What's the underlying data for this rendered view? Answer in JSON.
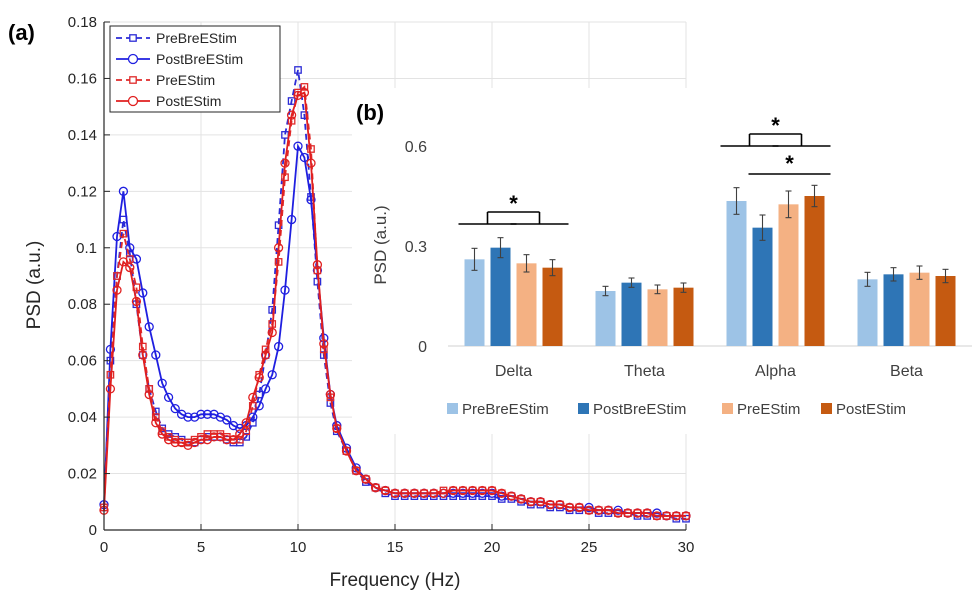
{
  "colors": {
    "pre_bre": "#2b2bd6",
    "post_bre": "#1f1fe0",
    "pre_e": "#e02a2a",
    "post_e": "#e01f1f",
    "bar_pre_bre": "#9dc3e6",
    "bar_post_bre": "#2e75b6",
    "bar_pre_e": "#f4b183",
    "bar_post_e": "#c55a11",
    "grid": "#e3e3e3",
    "axis": "#262626"
  },
  "panel_a_label": "(a)",
  "panel_b_label": "(b)",
  "chart_data": [
    {
      "type": "line",
      "panel": "(a)",
      "xlabel": "Frequency (Hz)",
      "ylabel": "PSD (a.u.)",
      "xlim": [
        0,
        30
      ],
      "ylim": [
        0,
        0.18
      ],
      "xticks": [
        0,
        5,
        10,
        15,
        20,
        25,
        30
      ],
      "yticks": [
        0,
        0.02,
        0.04,
        0.06,
        0.08,
        0.1,
        0.12,
        0.14,
        0.16,
        0.18
      ],
      "ytick_labels": [
        "0",
        "0.02",
        "0.04",
        "0.06",
        "0.08",
        "0.1",
        "0.12",
        "0.14",
        "0.16",
        "0.18"
      ],
      "grid": true,
      "legend_position": "top-left",
      "x": [
        0,
        0.33,
        0.67,
        1.0,
        1.33,
        1.67,
        2.0,
        2.33,
        2.67,
        3.0,
        3.33,
        3.67,
        4.0,
        4.33,
        4.67,
        5.0,
        5.33,
        5.67,
        6.0,
        6.33,
        6.67,
        7.0,
        7.33,
        7.67,
        8.0,
        8.33,
        8.67,
        9.0,
        9.33,
        9.67,
        10.0,
        10.33,
        10.67,
        11.0,
        11.33,
        11.67,
        12.0,
        12.5,
        13.0,
        13.5,
        14.0,
        14.5,
        15.0,
        15.5,
        16.0,
        16.5,
        17.0,
        17.5,
        18.0,
        18.5,
        19.0,
        19.5,
        20.0,
        20.5,
        21.0,
        21.5,
        22.0,
        22.5,
        23.0,
        23.5,
        24.0,
        24.5,
        25.0,
        25.5,
        26.0,
        26.5,
        27.0,
        27.5,
        28.0,
        28.5,
        29.0,
        29.5,
        30.0
      ],
      "series": [
        {
          "name": "PreBreEStim",
          "color_key": "pre_bre",
          "dash": "6,4",
          "marker": "square",
          "y": [
            0.008,
            0.06,
            0.09,
            0.11,
            0.098,
            0.08,
            0.062,
            0.05,
            0.042,
            0.036,
            0.034,
            0.033,
            0.032,
            0.031,
            0.031,
            0.032,
            0.033,
            0.033,
            0.033,
            0.032,
            0.031,
            0.031,
            0.033,
            0.038,
            0.048,
            0.062,
            0.078,
            0.108,
            0.14,
            0.152,
            0.163,
            0.147,
            0.118,
            0.088,
            0.062,
            0.045,
            0.035,
            0.028,
            0.021,
            0.017,
            0.015,
            0.013,
            0.012,
            0.012,
            0.012,
            0.012,
            0.012,
            0.012,
            0.012,
            0.012,
            0.012,
            0.012,
            0.012,
            0.011,
            0.011,
            0.01,
            0.009,
            0.009,
            0.008,
            0.008,
            0.007,
            0.007,
            0.007,
            0.006,
            0.006,
            0.006,
            0.006,
            0.005,
            0.005,
            0.005,
            0.005,
            0.004,
            0.004
          ]
        },
        {
          "name": "PostBreEStim",
          "color_key": "post_bre",
          "dash": "",
          "marker": "circle",
          "y": [
            0.009,
            0.064,
            0.104,
            0.12,
            0.1,
            0.096,
            0.084,
            0.072,
            0.062,
            0.052,
            0.047,
            0.043,
            0.041,
            0.04,
            0.04,
            0.041,
            0.041,
            0.041,
            0.04,
            0.039,
            0.037,
            0.036,
            0.037,
            0.04,
            0.044,
            0.05,
            0.055,
            0.065,
            0.085,
            0.11,
            0.136,
            0.132,
            0.117,
            0.092,
            0.068,
            0.048,
            0.037,
            0.029,
            0.022,
            0.018,
            0.015,
            0.014,
            0.013,
            0.013,
            0.013,
            0.013,
            0.013,
            0.013,
            0.013,
            0.013,
            0.013,
            0.013,
            0.013,
            0.012,
            0.012,
            0.011,
            0.01,
            0.01,
            0.009,
            0.009,
            0.008,
            0.008,
            0.008,
            0.007,
            0.007,
            0.007,
            0.006,
            0.006,
            0.006,
            0.006,
            0.005,
            0.005,
            0.005
          ]
        },
        {
          "name": "PreEStim",
          "color_key": "pre_e",
          "dash": "6,4",
          "marker": "square",
          "y": [
            0.008,
            0.055,
            0.09,
            0.105,
            0.096,
            0.086,
            0.065,
            0.05,
            0.04,
            0.035,
            0.033,
            0.032,
            0.031,
            0.031,
            0.032,
            0.033,
            0.034,
            0.034,
            0.034,
            0.033,
            0.032,
            0.032,
            0.035,
            0.044,
            0.055,
            0.064,
            0.073,
            0.095,
            0.125,
            0.145,
            0.155,
            0.157,
            0.135,
            0.092,
            0.064,
            0.047,
            0.036,
            0.028,
            0.021,
            0.018,
            0.015,
            0.014,
            0.013,
            0.013,
            0.013,
            0.013,
            0.013,
            0.014,
            0.014,
            0.014,
            0.014,
            0.014,
            0.014,
            0.013,
            0.012,
            0.011,
            0.01,
            0.01,
            0.009,
            0.009,
            0.008,
            0.008,
            0.007,
            0.007,
            0.007,
            0.006,
            0.006,
            0.006,
            0.006,
            0.005,
            0.005,
            0.005,
            0.005
          ]
        },
        {
          "name": "PostEStim",
          "color_key": "post_e",
          "dash": "",
          "marker": "circle",
          "y": [
            0.007,
            0.05,
            0.085,
            0.095,
            0.093,
            0.081,
            0.062,
            0.048,
            0.038,
            0.034,
            0.032,
            0.031,
            0.031,
            0.03,
            0.031,
            0.032,
            0.032,
            0.033,
            0.033,
            0.032,
            0.032,
            0.034,
            0.038,
            0.047,
            0.054,
            0.062,
            0.07,
            0.1,
            0.13,
            0.147,
            0.154,
            0.155,
            0.13,
            0.094,
            0.066,
            0.048,
            0.036,
            0.028,
            0.021,
            0.018,
            0.015,
            0.014,
            0.013,
            0.013,
            0.013,
            0.013,
            0.013,
            0.013,
            0.014,
            0.014,
            0.014,
            0.014,
            0.014,
            0.013,
            0.012,
            0.011,
            0.01,
            0.01,
            0.009,
            0.009,
            0.008,
            0.008,
            0.007,
            0.007,
            0.007,
            0.006,
            0.006,
            0.006,
            0.006,
            0.005,
            0.005,
            0.005,
            0.005
          ]
        }
      ]
    },
    {
      "type": "bar",
      "panel": "(b)",
      "ylabel": "PSD (a.u.)",
      "ylim": [
        0,
        0.6
      ],
      "yticks": [
        0,
        0.3,
        0.6
      ],
      "ytick_labels": [
        "0",
        "0.3",
        "0.6"
      ],
      "categories": [
        "Delta",
        "Theta",
        "Alpha",
        "Beta"
      ],
      "legend_position": "bottom",
      "series": [
        {
          "name": "PreBreEStim",
          "color_key": "bar_pre_bre",
          "values": [
            0.26,
            0.165,
            0.435,
            0.2
          ],
          "errors": [
            0.033,
            0.014,
            0.04,
            0.021
          ]
        },
        {
          "name": "PostBreEStim",
          "color_key": "bar_post_bre",
          "values": [
            0.295,
            0.19,
            0.355,
            0.215
          ],
          "errors": [
            0.03,
            0.014,
            0.038,
            0.02
          ]
        },
        {
          "name": "PreEStim",
          "color_key": "bar_pre_e",
          "values": [
            0.248,
            0.17,
            0.425,
            0.22
          ],
          "errors": [
            0.026,
            0.013,
            0.04,
            0.02
          ]
        },
        {
          "name": "PostEStim",
          "color_key": "bar_post_e",
          "values": [
            0.235,
            0.175,
            0.45,
            0.21
          ],
          "errors": [
            0.024,
            0.014,
            0.032,
            0.02
          ]
        }
      ],
      "significance": [
        {
          "category": "Delta",
          "pair": [
            [
              0,
              1
            ],
            [
              2,
              3
            ]
          ],
          "label": "*"
        },
        {
          "category": "Alpha",
          "pair": [
            [
              0,
              1
            ],
            [
              2,
              3
            ]
          ],
          "label": "*"
        },
        {
          "category": "Alpha",
          "pair": [
            [
              1
            ],
            [
              3
            ]
          ],
          "label": "*"
        }
      ]
    }
  ]
}
